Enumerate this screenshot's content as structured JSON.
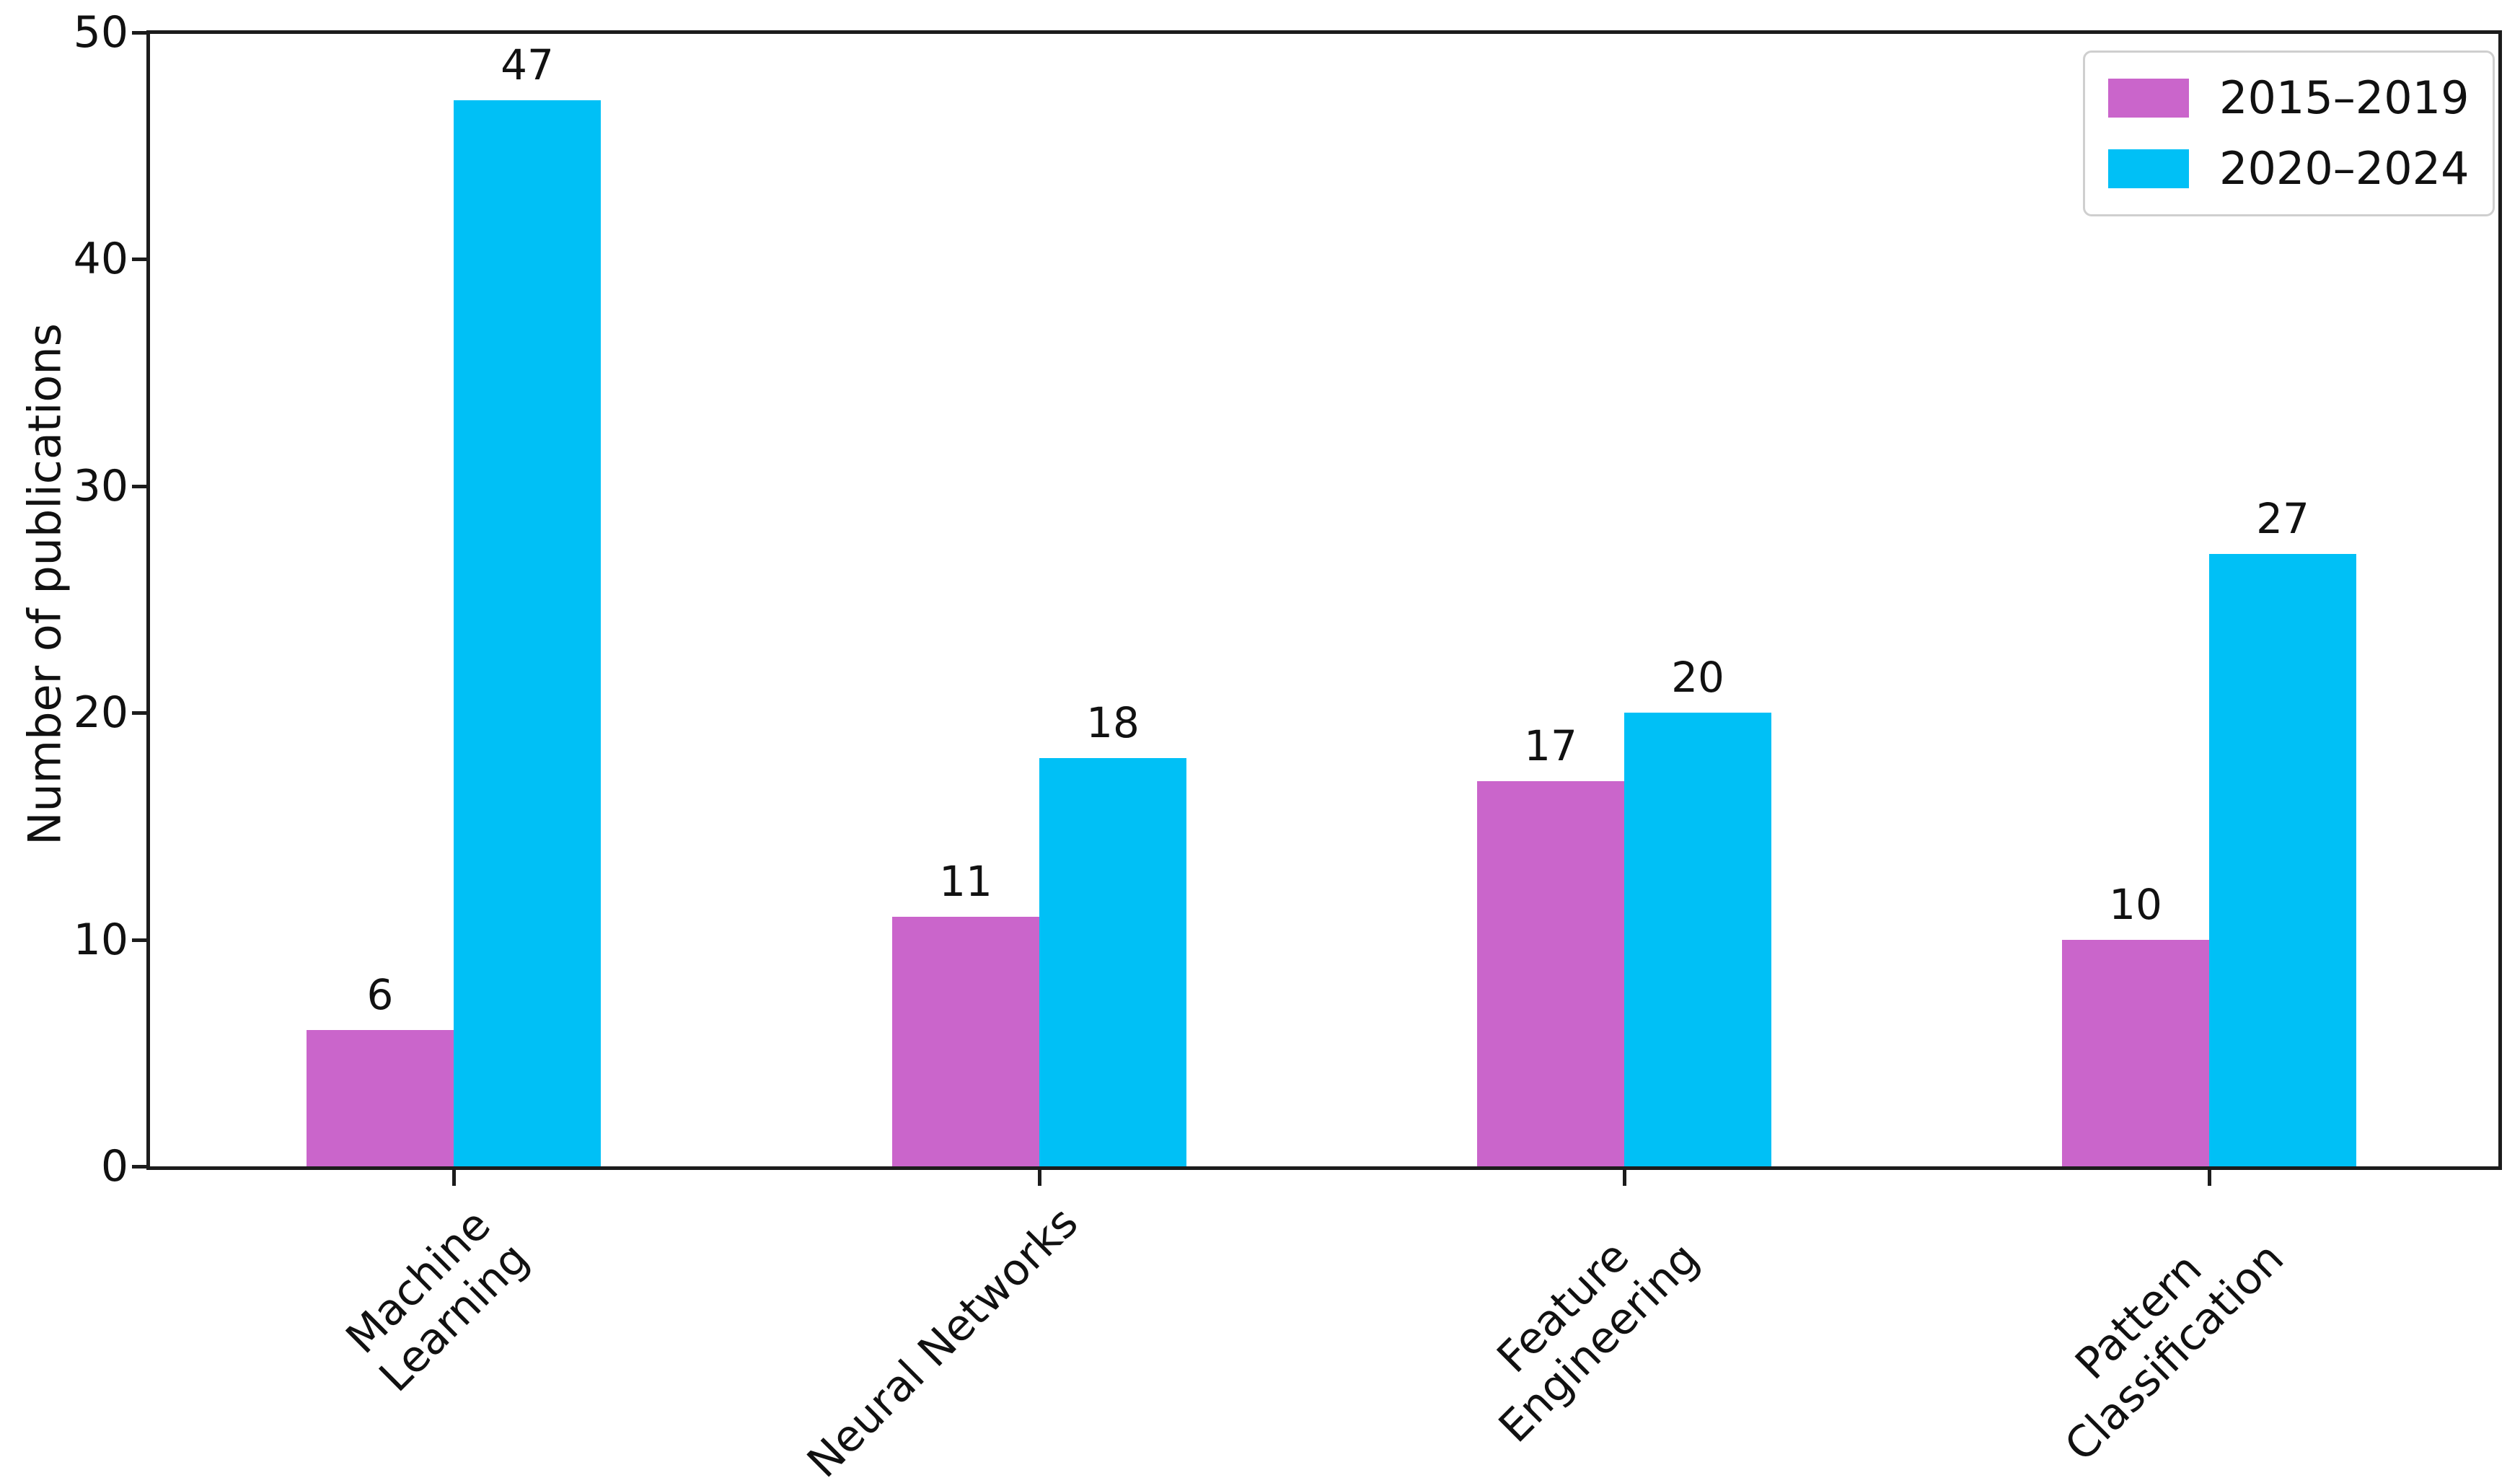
{
  "chart_data": {
    "type": "bar",
    "title": "",
    "xlabel": "",
    "ylabel": "Number of publications",
    "categories": [
      "Machine\nLearning",
      "Neural Networks",
      "Feature\nEngineering",
      "Pattern\nClassification"
    ],
    "series": [
      {
        "name": "2015–2019",
        "color": "#ca65cb",
        "values": [
          6,
          11,
          17,
          10
        ]
      },
      {
        "name": "2020–2024",
        "color": "#00c0f6",
        "values": [
          47,
          18,
          20,
          27
        ]
      }
    ],
    "bar_value_labels": [
      [
        6,
        47
      ],
      [
        11,
        18
      ],
      [
        17,
        20
      ],
      [
        10,
        27
      ]
    ],
    "ylim": [
      0,
      50
    ],
    "yticks": [
      0,
      10,
      20,
      30,
      40,
      50
    ],
    "grid": false,
    "legend_position": "upper right",
    "x_tick_label_rotation": 45,
    "colors": {
      "axis": "#1c1c1c",
      "text": "#111111",
      "legend_border": "#cfcfcf",
      "background": "#ffffff"
    }
  }
}
